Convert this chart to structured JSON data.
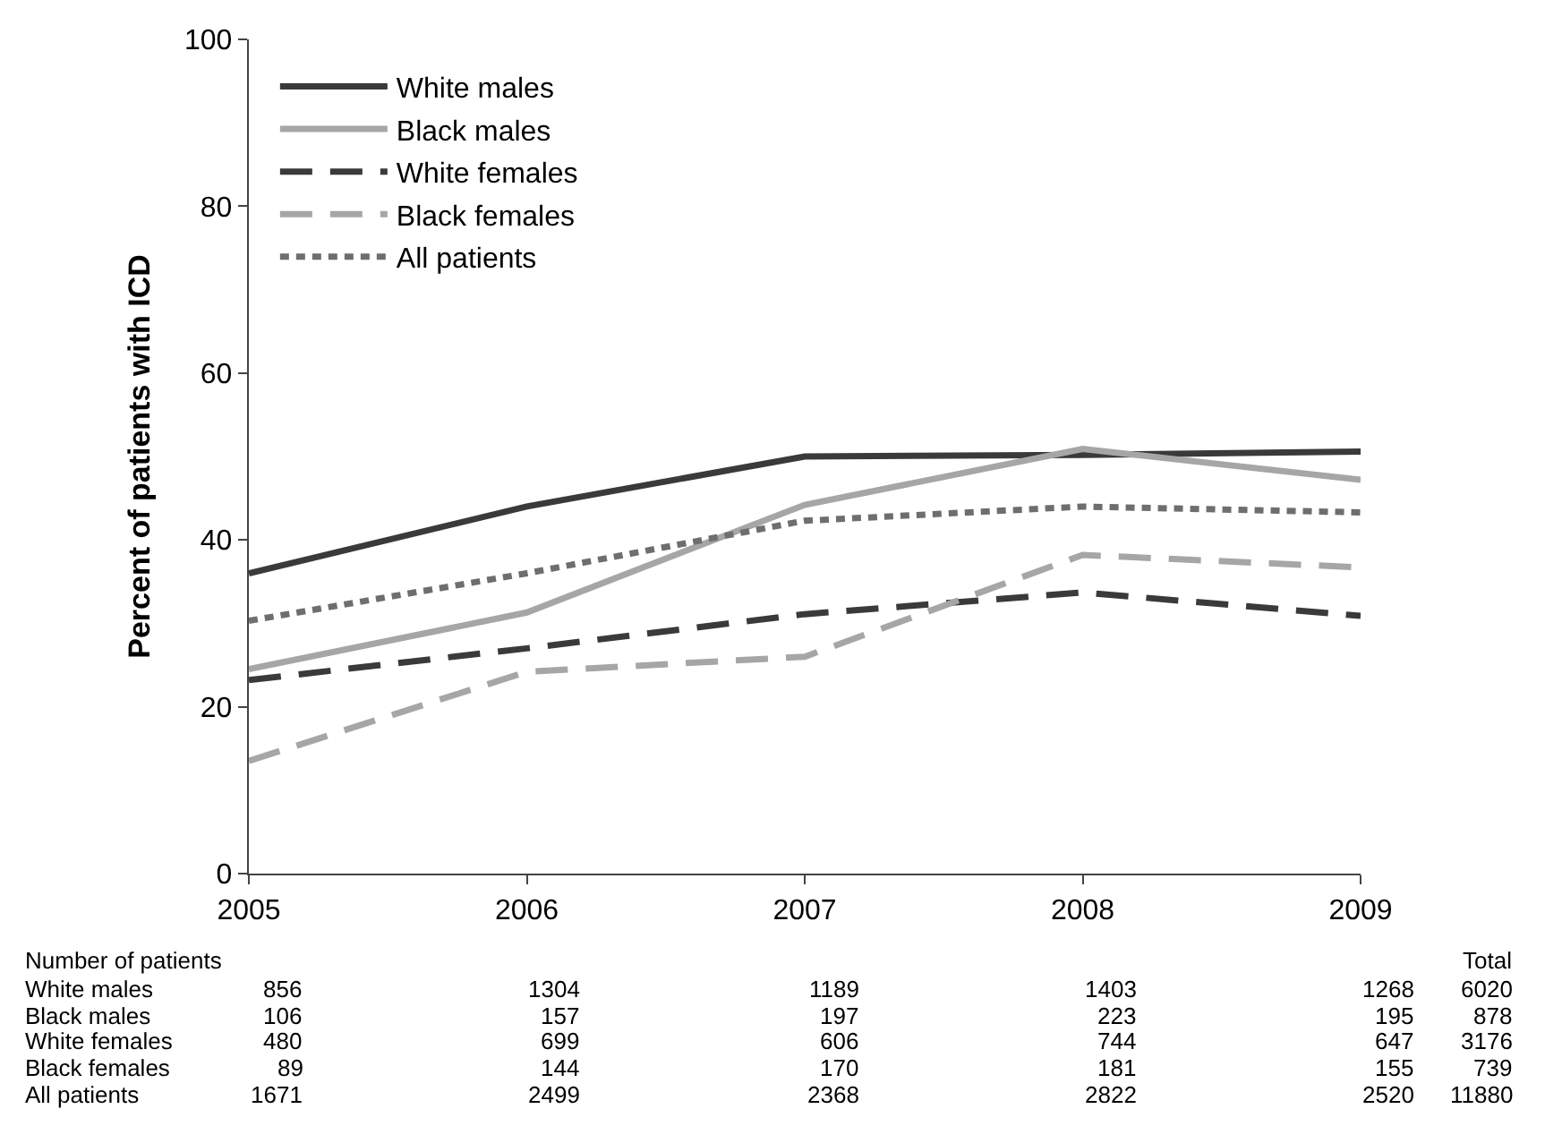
{
  "chart_data": {
    "type": "line",
    "ylabel": "Percent of patients with ICD",
    "x": [
      2005,
      2006,
      2007,
      2008,
      2009
    ],
    "series": [
      {
        "name": "White males",
        "color": "#3a3a3a",
        "line_style": "solid",
        "values": [
          36,
          44,
          50,
          50.2,
          50.6
        ]
      },
      {
        "name": "Black males",
        "color": "#a6a6a6",
        "line_style": "solid",
        "values": [
          24.5,
          31.3,
          44.2,
          50.9,
          47.2
        ]
      },
      {
        "name": "White females",
        "color": "#3a3a3a",
        "line_style": "dashed",
        "values": [
          23.2,
          27,
          31.1,
          33.7,
          30.9
        ]
      },
      {
        "name": "Black females",
        "color": "#a6a6a6",
        "line_style": "dashed",
        "values": [
          13.5,
          24.2,
          26,
          38.2,
          36.7
        ]
      },
      {
        "name": "All patients",
        "color": "#6e6e6e",
        "line_style": "dotted",
        "values": [
          30.3,
          36,
          42.3,
          44,
          43.3
        ]
      }
    ],
    "xlim": [
      2005,
      2009
    ],
    "xticks": [
      2005,
      2006,
      2007,
      2008,
      2009
    ],
    "ylim": [
      0,
      100
    ],
    "yticks": [
      0,
      20,
      40,
      60,
      80,
      100
    ],
    "legend": "top left",
    "marker": "none",
    "annotations": [
      "Number of patients\t\t\t\t\t\tTotal",
      "White males\t856\t1304\t1189\t1403\t1268\t6020",
      "Black males\t106\t157\t197\t223\t195\t878",
      "White females\t480\t699\t606\t744\t647\t3176",
      "Black females\t89\t144\t170\t181\t155\t739",
      "All patients\t1671\t2499\t2368\t2822\t2520\t11880"
    ]
  }
}
